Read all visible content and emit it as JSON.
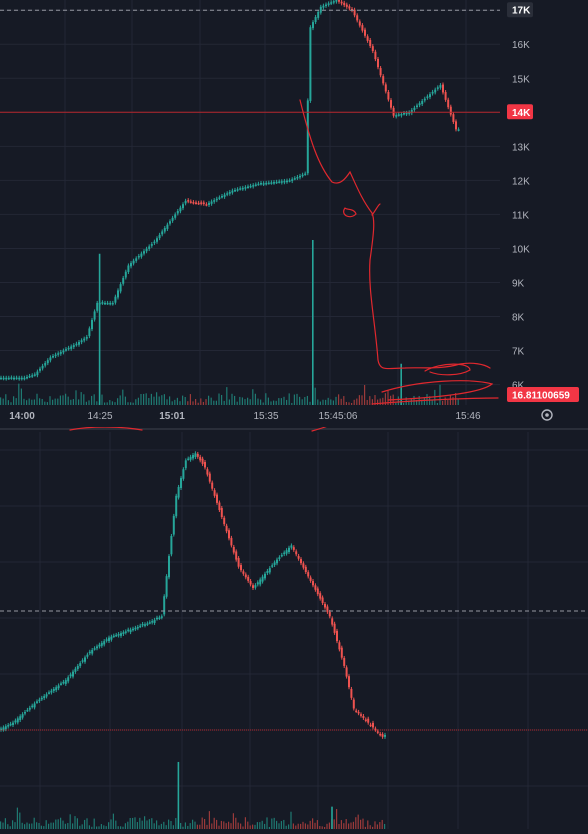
{
  "colors": {
    "background": "#161a25",
    "grid": "#232735",
    "up": "#26a69a",
    "down": "#ef5350",
    "axis_text": "#b2b5be",
    "marker": "#f23645",
    "ink": "#e0282e"
  },
  "icons": {
    "settings": "gear-icon"
  },
  "chart_data": [
    {
      "type": "candlestick",
      "panel": "top",
      "title": "",
      "y_ticks": [
        "16K",
        "15K",
        "13K",
        "12K",
        "11K",
        "10K",
        "9K",
        "8K",
        "7K",
        "6K"
      ],
      "ylim": [
        5400,
        17300
      ],
      "price_tags": [
        {
          "label": "17K",
          "value": 17000,
          "style": "crosshair"
        },
        {
          "label": "14K",
          "value": 14000,
          "style": "price-line"
        },
        {
          "label": "16.81100659",
          "value": 5200,
          "style": "last-price"
        }
      ],
      "x_ticks": [
        "14:00",
        "14:25",
        "15:01",
        "15:35",
        "15:45:06",
        "15:46"
      ],
      "series_profile": [
        [
          0,
          6200
        ],
        [
          5,
          6200
        ],
        [
          7,
          6300
        ],
        [
          10,
          6800
        ],
        [
          15,
          7200
        ],
        [
          17,
          7400
        ],
        [
          19,
          8400
        ],
        [
          22,
          8400
        ],
        [
          25,
          9500
        ],
        [
          30,
          10200
        ],
        [
          36,
          11400
        ],
        [
          40,
          11300
        ],
        [
          45,
          11700
        ],
        [
          50,
          11900
        ],
        [
          56,
          12000
        ],
        [
          59,
          12200
        ],
        [
          60,
          16500
        ],
        [
          62,
          17100
        ],
        [
          65,
          17300
        ],
        [
          68,
          17000
        ],
        [
          72,
          15800
        ],
        [
          76,
          13900
        ],
        [
          79,
          14000
        ],
        [
          85,
          14800
        ],
        [
          88,
          13500
        ]
      ],
      "volume_spikes": [
        [
          19,
          0.55
        ],
        [
          60,
          0.6
        ],
        [
          77,
          0.15
        ]
      ]
    },
    {
      "type": "candlestick",
      "panel": "bottom",
      "series_profile": [
        [
          0,
          6700
        ],
        [
          3,
          6800
        ],
        [
          8,
          7100
        ],
        [
          14,
          7400
        ],
        [
          19,
          7800
        ],
        [
          23,
          8000
        ],
        [
          27,
          8100
        ],
        [
          31,
          8200
        ],
        [
          34,
          8300
        ],
        [
          37,
          10000
        ],
        [
          39,
          10500
        ],
        [
          41,
          10600
        ],
        [
          43,
          10400
        ],
        [
          46,
          9800
        ],
        [
          50,
          9000
        ],
        [
          53,
          8700
        ],
        [
          58,
          9100
        ],
        [
          61,
          9300
        ],
        [
          65,
          8800
        ],
        [
          69,
          8300
        ],
        [
          72,
          7600
        ],
        [
          74,
          7000
        ],
        [
          77,
          6800
        ],
        [
          80,
          6600
        ]
      ],
      "volume_spikes": [
        [
          37,
          0.45
        ],
        [
          69,
          0.15
        ]
      ]
    }
  ]
}
